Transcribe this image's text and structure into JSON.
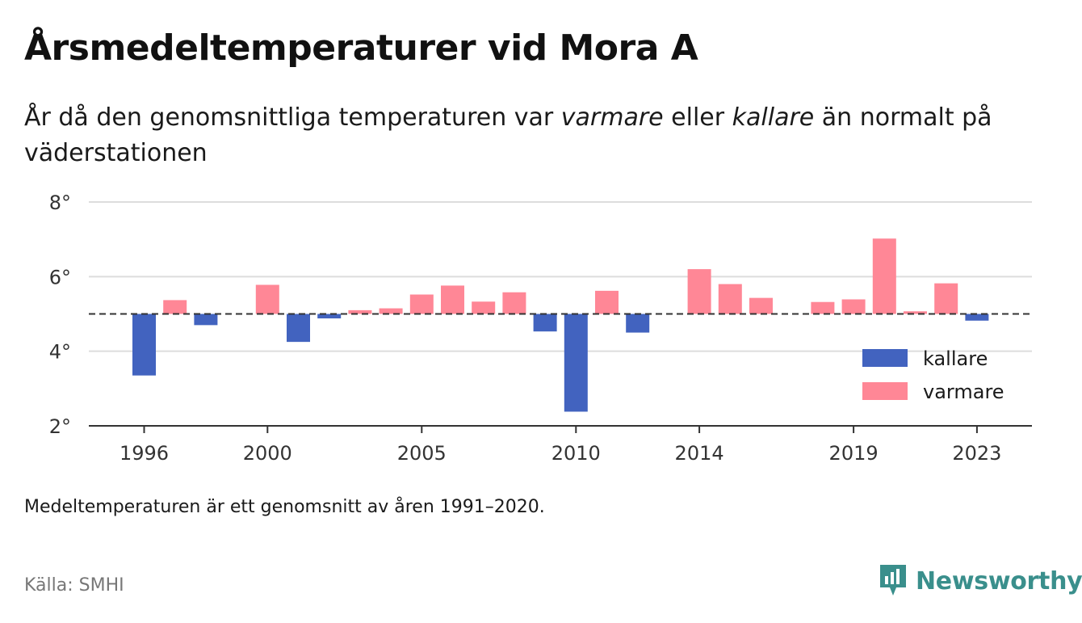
{
  "header": {
    "title": "Årsmedeltemperaturer vid Mora A",
    "subtitle_prefix": "År då den genomsnittliga temperaturen var ",
    "subtitle_warm": "varmare",
    "subtitle_mid": " eller ",
    "subtitle_cold": "kallare",
    "subtitle_suffix": " än normalt på väderstationen"
  },
  "footer": {
    "note": "Medeltemperaturen är ett genomsnitt av åren 1991–2020.",
    "source": "Källa: SMHI",
    "brand": "Newsworthy"
  },
  "colors": {
    "kallare": "#4263bf",
    "varmare": "#ff8796",
    "grid": "#dddddd",
    "axis": "#333333",
    "brand": "#3a8f8c"
  },
  "chart_data": {
    "type": "bar",
    "baseline": 5.0,
    "ylim": [
      2,
      8
    ],
    "yticks": [
      2,
      4,
      6,
      8
    ],
    "ytick_labels": [
      "2°",
      "4°",
      "6°",
      "8°"
    ],
    "xticks": [
      1996,
      2000,
      2005,
      2010,
      2014,
      2019,
      2023
    ],
    "xtick_labels": [
      "1996",
      "2000",
      "2005",
      "2010",
      "2014",
      "2019",
      "2023"
    ],
    "x": [
      1996,
      1997,
      1998,
      1999,
      2000,
      2001,
      2002,
      2003,
      2004,
      2005,
      2006,
      2007,
      2008,
      2009,
      2010,
      2011,
      2012,
      2013,
      2014,
      2015,
      2016,
      2017,
      2018,
      2019,
      2020,
      2021,
      2022,
      2023
    ],
    "values": [
      3.35,
      5.37,
      4.7,
      null,
      5.78,
      4.25,
      4.88,
      5.1,
      5.15,
      5.52,
      5.76,
      5.33,
      5.58,
      4.53,
      2.38,
      5.62,
      4.5,
      null,
      6.2,
      5.8,
      5.43,
      null,
      5.32,
      5.39,
      7.02,
      5.07,
      5.82,
      4.82
    ],
    "legend": [
      {
        "name": "kallare",
        "key": "kallare"
      },
      {
        "name": "varmare",
        "key": "varmare"
      }
    ],
    "legend_position": "right",
    "grid": true
  }
}
